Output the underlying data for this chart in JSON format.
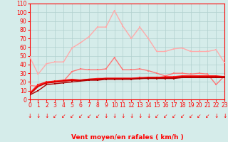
{
  "x": [
    0,
    1,
    2,
    3,
    4,
    5,
    6,
    7,
    8,
    9,
    10,
    11,
    12,
    13,
    14,
    15,
    16,
    17,
    18,
    19,
    20,
    21,
    22,
    23
  ],
  "series": [
    {
      "name": "rafales_max",
      "color": "#ffaaaa",
      "linewidth": 1.0,
      "markersize": 2.0,
      "values": [
        49,
        29,
        41,
        43,
        43,
        59,
        65,
        72,
        83,
        83,
        102,
        84,
        70,
        83,
        70,
        55,
        55,
        58,
        59,
        55,
        55,
        55,
        57,
        42
      ]
    },
    {
      "name": "rafales_mean",
      "color": "#ff7777",
      "linewidth": 1.0,
      "markersize": 2.0,
      "values": [
        16,
        15,
        20,
        21,
        21,
        32,
        35,
        34,
        34,
        35,
        48,
        34,
        34,
        35,
        33,
        30,
        27,
        30,
        30,
        29,
        30,
        29,
        17,
        27
      ]
    },
    {
      "name": "vent_max",
      "color": "#ff2222",
      "linewidth": 1.2,
      "markersize": 2.0,
      "values": [
        7,
        17,
        20,
        21,
        22,
        23,
        22,
        23,
        24,
        24,
        24,
        24,
        24,
        25,
        25,
        25,
        26,
        26,
        27,
        27,
        27,
        27,
        27,
        26
      ]
    },
    {
      "name": "vent_mean",
      "color": "#dd0000",
      "linewidth": 1.5,
      "markersize": 2.0,
      "values": [
        6,
        15,
        19,
        20,
        21,
        22,
        22,
        23,
        23,
        24,
        24,
        24,
        24,
        24,
        25,
        25,
        25,
        25,
        26,
        26,
        26,
        26,
        26,
        26
      ]
    },
    {
      "name": "vent_min",
      "color": "#aa0000",
      "linewidth": 1.0,
      "markersize": 1.5,
      "values": [
        5,
        10,
        17,
        18,
        19,
        20,
        21,
        22,
        22,
        23,
        23,
        23,
        23,
        24,
        24,
        24,
        24,
        24,
        25,
        25,
        25,
        25,
        25,
        25
      ]
    }
  ],
  "wind_arrows": [
    "↓",
    "↓",
    "↓",
    "↙",
    "↙",
    "↙",
    "↙",
    "↙",
    "↙",
    "↓",
    "↓",
    "↓",
    "↓",
    "↓",
    "↓",
    "↙",
    "↙",
    "↙",
    "↙",
    "↙",
    "↙",
    "↙",
    "↓",
    "↓"
  ],
  "xlabel": "Vent moyen/en rafales ( km/h )",
  "ylim": [
    0,
    110
  ],
  "xlim": [
    0,
    23
  ],
  "yticks": [
    0,
    10,
    20,
    30,
    40,
    50,
    60,
    70,
    80,
    90,
    100,
    110
  ],
  "xticks": [
    0,
    1,
    2,
    3,
    4,
    5,
    6,
    7,
    8,
    9,
    10,
    11,
    12,
    13,
    14,
    15,
    16,
    17,
    18,
    19,
    20,
    21,
    22,
    23
  ],
  "bg_color": "#d5ecea",
  "grid_color": "#b0d0ce",
  "red_color": "#ff0000",
  "label_fontsize": 5.5,
  "xlabel_fontsize": 6.5
}
